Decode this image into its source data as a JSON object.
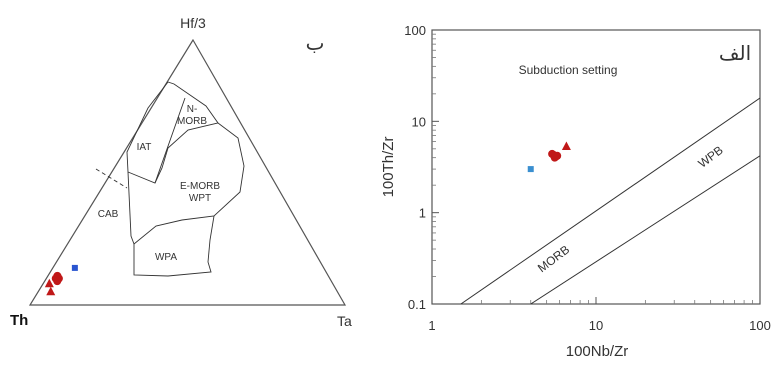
{
  "chart_data": [
    {
      "type": "ternary",
      "panel_label": "ب",
      "vertices": {
        "top": "Hf/3",
        "left": "Th",
        "right": "Ta"
      },
      "fields": [
        {
          "label_lines": [
            "IAT"
          ]
        },
        {
          "label_lines": [
            "N-",
            "MORB"
          ]
        },
        {
          "label_lines": [
            "E-MORB",
            "WPT"
          ]
        },
        {
          "label_lines": [
            "CAB"
          ]
        },
        {
          "label_lines": [
            "WPA"
          ]
        }
      ],
      "series": [
        {
          "marker": "circle",
          "color": "#c01818",
          "points": [
            {
              "Hf/3": 0.1,
              "Th": 0.87,
              "Ta": 0.03
            },
            {
              "Hf/3": 0.1,
              "Th": 0.86,
              "Ta": 0.04
            },
            {
              "Hf/3": 0.09,
              "Th": 0.87,
              "Ta": 0.04
            },
            {
              "Hf/3": 0.11,
              "Th": 0.86,
              "Ta": 0.03
            }
          ]
        },
        {
          "marker": "triangle",
          "color": "#c01818",
          "points": [
            {
              "Hf/3": 0.08,
              "Th": 0.9,
              "Ta": 0.02
            },
            {
              "Hf/3": 0.05,
              "Th": 0.91,
              "Ta": 0.04
            }
          ]
        },
        {
          "marker": "square",
          "color": "#2a55d0",
          "points": [
            {
              "Hf/3": 0.14,
              "Th": 0.79,
              "Ta": 0.07
            }
          ]
        }
      ]
    },
    {
      "type": "scatter",
      "panel_label": "الف",
      "xlabel": "100Nb/Zr",
      "ylabel": "100Th/Zr",
      "xscale": "log",
      "yscale": "log",
      "xlim": [
        1,
        100
      ],
      "ylim": [
        0.1,
        100
      ],
      "xticks": [
        "1",
        "10",
        "100"
      ],
      "yticks": [
        "0.1",
        "1",
        "10",
        "100"
      ],
      "region_label": "Subduction setting",
      "boundary_labels": [
        "MORB",
        "WPB"
      ],
      "boundary_lines": [
        {
          "points": [
            {
              "x": 1.5,
              "y": 0.1
            },
            {
              "x": 100,
              "y": 18
            }
          ]
        },
        {
          "points": [
            {
              "x": 4.0,
              "y": 0.1
            },
            {
              "x": 100,
              "y": 4.2
            }
          ]
        }
      ],
      "series": [
        {
          "marker": "circle",
          "color": "#c01818",
          "points": [
            {
              "x": 5.5,
              "y": 4.3
            },
            {
              "x": 5.7,
              "y": 4.1
            },
            {
              "x": 5.4,
              "y": 4.4
            },
            {
              "x": 5.6,
              "y": 4.0
            },
            {
              "x": 5.8,
              "y": 4.2
            }
          ]
        },
        {
          "marker": "triangle",
          "color": "#c01818",
          "points": [
            {
              "x": 6.6,
              "y": 5.3
            }
          ]
        },
        {
          "marker": "square",
          "color": "#3a8fd0",
          "points": [
            {
              "x": 4.0,
              "y": 3.0
            }
          ]
        }
      ]
    }
  ]
}
